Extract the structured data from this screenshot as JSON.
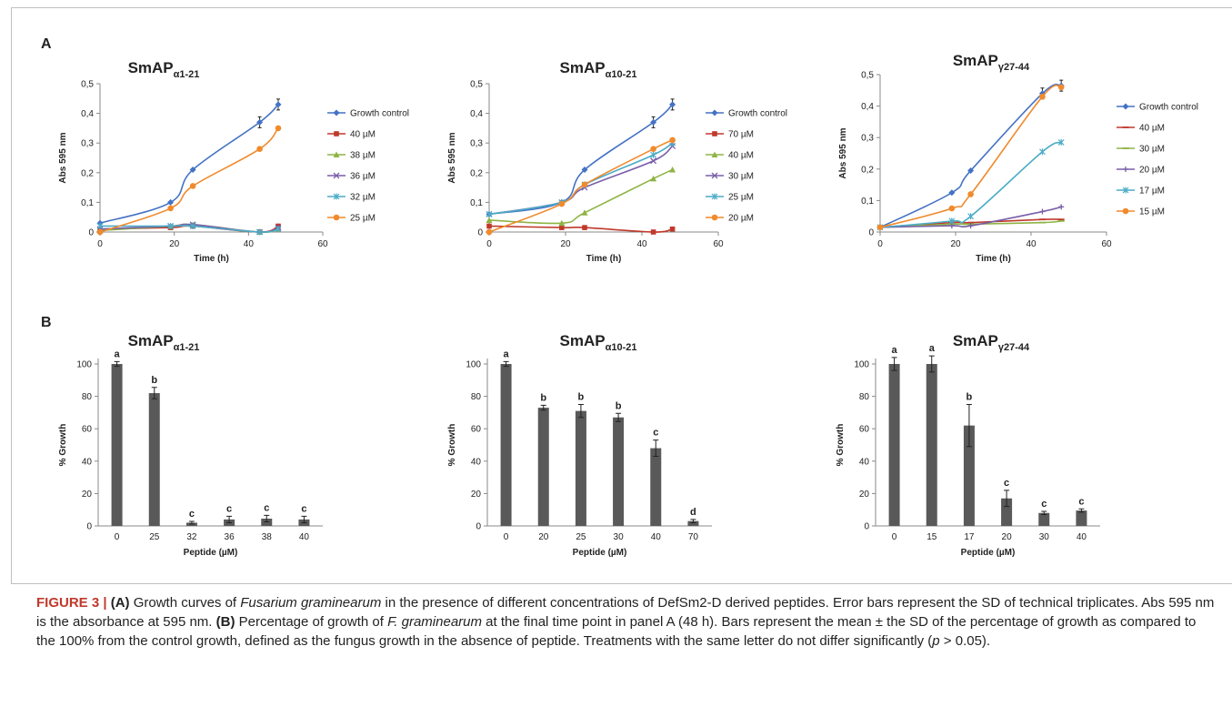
{
  "panel_labels": [
    "A",
    "B"
  ],
  "caption": {
    "figure_label": "FIGURE 3 |",
    "a_tag": "(A)",
    "a_text_1": " Growth curves of ",
    "a_species": "Fusarium graminearum",
    "a_text_2": " in the presence of different concentrations of DefSm2-D derived peptides. Error bars represent the SD of technical triplicates. Abs 595 nm is the absorbance at 595 nm. ",
    "b_tag": "(B)",
    "b_text_1": " Percentage of growth of ",
    "b_species": "F. graminearum",
    "b_text_2": " at the final time point in panel A (48 h). Bars represent the mean ± the SD of the percentage of growth as compared to the 100% from the control growth, defined as the fungus growth in the absence of peptide. Treatments with the same letter do not differ significantly (",
    "b_p": "p",
    "b_text_3": " > 0.05)."
  },
  "chart_data": [
    {
      "type": "line",
      "panel": "A",
      "title_main": "SmAP",
      "title_sub": "α1-21",
      "xlabel": "Time (h)",
      "ylabel": "Abs 595 nm",
      "xlim": [
        0,
        60
      ],
      "ylim": [
        0,
        0.5
      ],
      "xticks": [
        "0",
        "20",
        "40",
        "60"
      ],
      "yticks": [
        "0",
        "0,1",
        "0,2",
        "0,3",
        "0,4",
        "0,5"
      ],
      "x": [
        0,
        19,
        25,
        43,
        48
      ],
      "series": [
        {
          "name": "Growth control",
          "color": "#4472c4",
          "marker": "diamond",
          "values": [
            0.03,
            0.1,
            0.21,
            0.37,
            0.43
          ]
        },
        {
          "name": "40 µM",
          "color": "#c0392b",
          "marker": "square",
          "values": [
            0.01,
            0.015,
            0.02,
            0.0,
            0.02
          ]
        },
        {
          "name": "38 µM",
          "color": "#8fb446",
          "marker": "triangle",
          "values": [
            0.005,
            0.02,
            0.025,
            0.0,
            0.01
          ]
        },
        {
          "name": "36 µM",
          "color": "#7a5ea8",
          "marker": "x",
          "values": [
            0.01,
            0.02,
            0.025,
            0.0,
            0.015
          ]
        },
        {
          "name": "32 µM",
          "color": "#4bacc6",
          "marker": "star",
          "values": [
            0.02,
            0.02,
            0.02,
            0.0,
            0.01
          ]
        },
        {
          "name": "25 µM",
          "color": "#f08a2c",
          "marker": "circle",
          "values": [
            0.0,
            0.08,
            0.155,
            0.28,
            0.35
          ]
        }
      ]
    },
    {
      "type": "line",
      "panel": "A",
      "title_main": "SmAP",
      "title_sub": "α10-21",
      "xlabel": "Time (h)",
      "ylabel": "Abs 595 nm",
      "xlim": [
        0,
        60
      ],
      "ylim": [
        0,
        0.5
      ],
      "xticks": [
        "0",
        "20",
        "40",
        "60"
      ],
      "yticks": [
        "0",
        "0,1",
        "0,2",
        "0,3",
        "0,4",
        "0,5"
      ],
      "x": [
        0,
        19,
        25,
        43,
        48
      ],
      "series": [
        {
          "name": "Growth control",
          "color": "#4472c4",
          "marker": "diamond",
          "values": [
            0.06,
            0.1,
            0.21,
            0.37,
            0.43
          ]
        },
        {
          "name": "70 µM",
          "color": "#c0392b",
          "marker": "square",
          "values": [
            0.02,
            0.015,
            0.015,
            0.0,
            0.01
          ]
        },
        {
          "name": "40 µM",
          "color": "#8fb446",
          "marker": "triangle",
          "values": [
            0.04,
            0.03,
            0.065,
            0.18,
            0.21
          ]
        },
        {
          "name": "30 µM",
          "color": "#7a5ea8",
          "marker": "x",
          "values": [
            0.06,
            0.1,
            0.15,
            0.24,
            0.29
          ]
        },
        {
          "name": "25 µM",
          "color": "#4bacc6",
          "marker": "star",
          "values": [
            0.06,
            0.1,
            0.16,
            0.26,
            0.3
          ]
        },
        {
          "name": "20 µM",
          "color": "#f08a2c",
          "marker": "circle",
          "values": [
            0.0,
            0.095,
            0.16,
            0.28,
            0.31
          ]
        }
      ]
    },
    {
      "type": "line",
      "panel": "A",
      "title_main": "SmAP",
      "title_sub": "γ27-44",
      "xlabel": "Time (h)",
      "ylabel": "Abs 595 nm",
      "xlim": [
        0,
        60
      ],
      "ylim": [
        0,
        0.5
      ],
      "xticks": [
        "0",
        "20",
        "40",
        "60"
      ],
      "yticks": [
        "0",
        "0,1",
        "0,2",
        "0,3",
        "0,4",
        "0,5"
      ],
      "x": [
        0,
        19,
        24,
        43,
        48
      ],
      "series": [
        {
          "name": "Growth control",
          "color": "#4472c4",
          "marker": "diamond",
          "values": [
            0.015,
            0.125,
            0.195,
            0.44,
            0.465
          ]
        },
        {
          "name": "40 µM",
          "color": "#c0392b",
          "marker": "dash",
          "values": [
            0.015,
            0.03,
            0.03,
            0.04,
            0.04
          ]
        },
        {
          "name": "30 µM",
          "color": "#8fb446",
          "marker": "dash",
          "values": [
            0.015,
            0.025,
            0.025,
            0.03,
            0.035
          ]
        },
        {
          "name": "20 µM",
          "color": "#7a5ea8",
          "marker": "plus",
          "values": [
            0.015,
            0.02,
            0.02,
            0.065,
            0.08
          ]
        },
        {
          "name": "17 µM",
          "color": "#4bacc6",
          "marker": "star",
          "values": [
            0.015,
            0.035,
            0.05,
            0.255,
            0.285
          ]
        },
        {
          "name": "15 µM",
          "color": "#f08a2c",
          "marker": "circle",
          "values": [
            0.015,
            0.075,
            0.12,
            0.43,
            0.46
          ]
        }
      ]
    },
    {
      "type": "bar",
      "panel": "B",
      "title_main": "SmAP",
      "title_sub": "α1-21",
      "xlabel": "Peptide (µM)",
      "ylabel": "% Growth",
      "ylim": [
        0,
        100
      ],
      "yticks": [
        "0",
        "20",
        "40",
        "60",
        "80",
        "100"
      ],
      "categories": [
        "0",
        "25",
        "32",
        "36",
        "38",
        "40"
      ],
      "values": [
        100,
        82,
        2,
        4,
        4.5,
        4
      ],
      "errors": [
        1.5,
        3.5,
        0.8,
        2,
        2,
        2
      ],
      "letters": [
        "a",
        "b",
        "c",
        "c",
        "c",
        "c"
      ],
      "bar_color": "#595959"
    },
    {
      "type": "bar",
      "panel": "B",
      "title_main": "SmAP",
      "title_sub": "α10-21",
      "xlabel": "Peptide (µM)",
      "ylabel": "% Growth",
      "ylim": [
        0,
        100
      ],
      "yticks": [
        "0",
        "20",
        "40",
        "60",
        "80",
        "100"
      ],
      "categories": [
        "0",
        "20",
        "25",
        "30",
        "40",
        "70"
      ],
      "values": [
        100,
        73,
        71,
        67,
        48,
        3
      ],
      "errors": [
        1.5,
        1.5,
        4,
        2.5,
        5,
        1
      ],
      "letters": [
        "a",
        "b",
        "b",
        "b",
        "c",
        "d"
      ],
      "bar_color": "#595959"
    },
    {
      "type": "bar",
      "panel": "B",
      "title_main": "SmAP",
      "title_sub": "γ27-44",
      "xlabel": "Peptide (µM)",
      "ylabel": "% Growth",
      "ylim": [
        0,
        100
      ],
      "yticks": [
        "0",
        "20",
        "40",
        "60",
        "80",
        "100"
      ],
      "categories": [
        "0",
        "15",
        "17",
        "20",
        "30",
        "40"
      ],
      "values": [
        100,
        100,
        62,
        17,
        8,
        9.5
      ],
      "errors": [
        4,
        5,
        13,
        5,
        1,
        1
      ],
      "letters": [
        "a",
        "a",
        "b",
        "c",
        "c",
        "c"
      ],
      "bar_color": "#595959"
    }
  ]
}
